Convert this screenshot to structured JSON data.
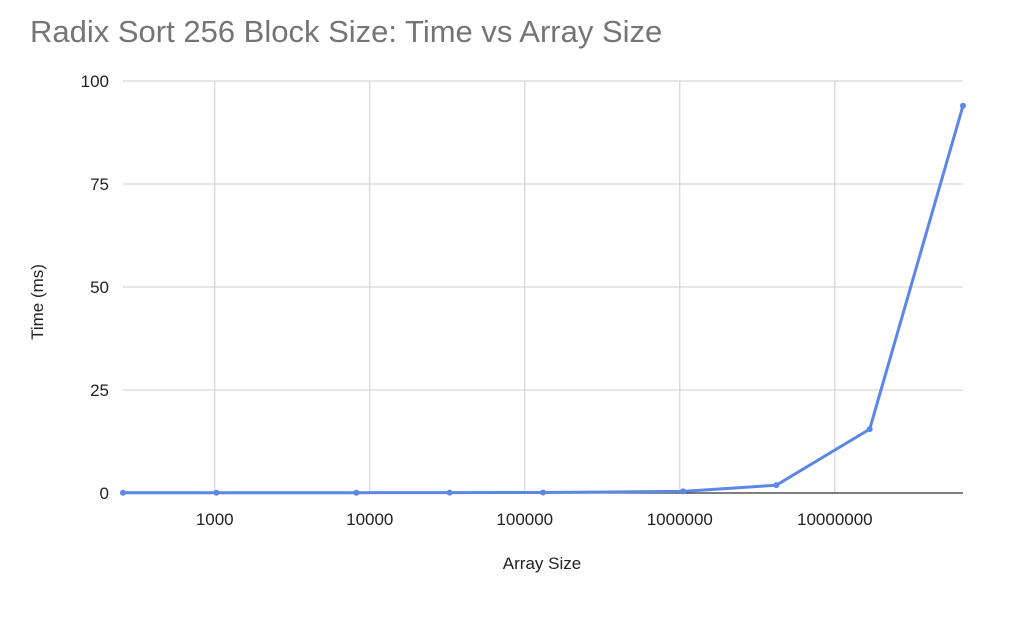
{
  "chart_data": {
    "type": "line",
    "title": "Radix Sort 256 Block Size: Time vs Array Size",
    "xlabel": "Array Size",
    "ylabel": "Time (ms)",
    "x_scale": "log",
    "xlim": [
      256,
      67108864
    ],
    "ylim": [
      0,
      100
    ],
    "x_ticks": [
      1000,
      10000,
      100000,
      1000000,
      10000000
    ],
    "x_tick_labels": [
      "1000",
      "10000",
      "100000",
      "1000000",
      "10000000"
    ],
    "y_ticks": [
      0,
      25,
      50,
      75,
      100
    ],
    "y_tick_labels": [
      "0",
      "25",
      "50",
      "75",
      "100"
    ],
    "grid": true,
    "series": [
      {
        "name": "Time (ms)",
        "color": "#5b87e6",
        "x": [
          256,
          1024,
          8192,
          32768,
          131072,
          1048576,
          4194304,
          16777216,
          67108864
        ],
        "values": [
          0.05,
          0.06,
          0.07,
          0.1,
          0.12,
          0.4,
          1.9,
          15.5,
          94
        ]
      }
    ]
  }
}
